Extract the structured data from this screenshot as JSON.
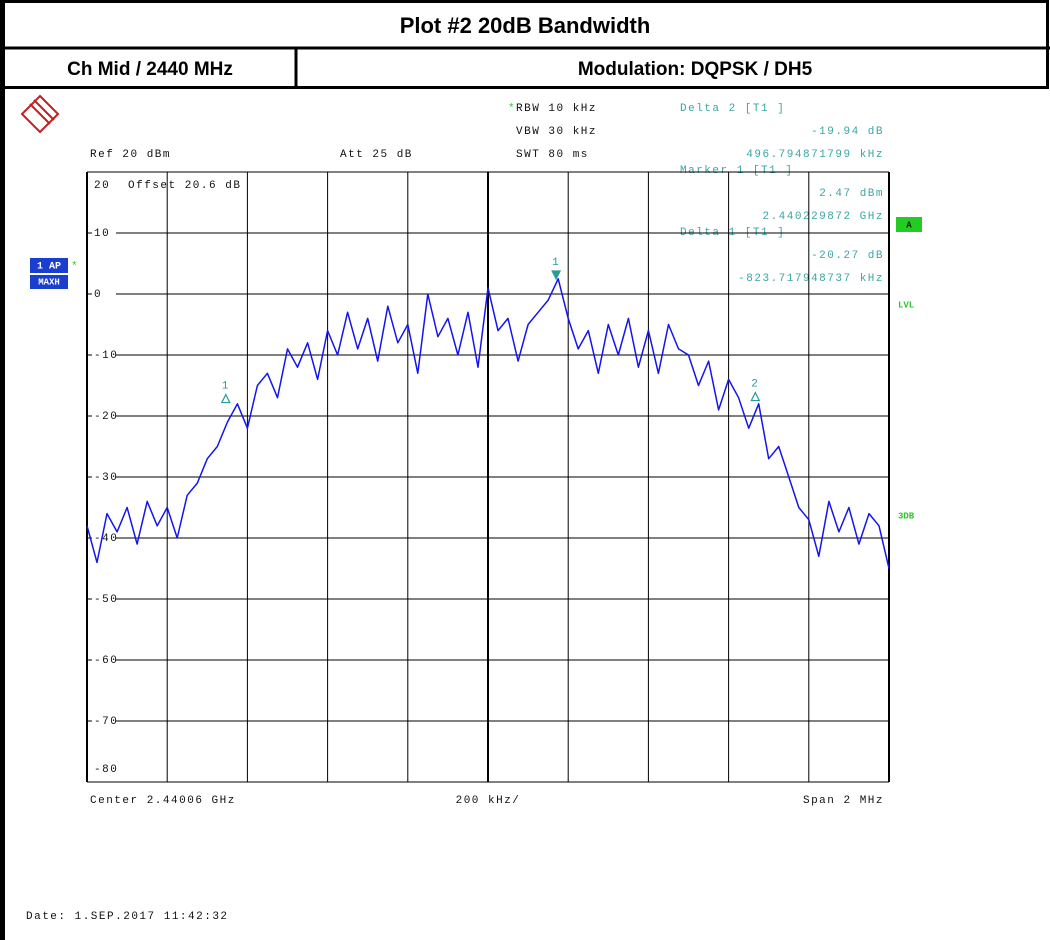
{
  "header": {
    "title": "Plot #2 20dB Bandwidth",
    "left": "Ch Mid / 2440 MHz",
    "right": "Modulation: DQPSK / DH5"
  },
  "settings": {
    "rbw_star": "*",
    "rbw": "RBW 10 kHz",
    "vbw": "VBW 30 kHz",
    "swt": "SWT 80 ms",
    "ref": "Ref 20 dBm",
    "att": "Att 25 dB",
    "offset": "Offset 20.6 dB"
  },
  "readout": [
    [
      "Delta 2 [T1 ]",
      "-19.94 dB",
      "496.794871799 kHz"
    ],
    [
      "Marker 1 [T1 ]",
      "2.47 dBm",
      "2.440229872 GHz"
    ],
    [
      "Delta 1 [T1 ]",
      "-20.27 dB",
      "-823.717948737 kHz"
    ]
  ],
  "side_labels": {
    "trace": "1 AP",
    "trace_star": "*",
    "mode": "MAXH",
    "a": "A",
    "lvl": "LVL",
    "db3": "3DB"
  },
  "footer": {
    "center": "Center 2.44006 GHz",
    "div": "200 kHz/",
    "span": "Span 2 MHz",
    "date": "Date: 1.SEP.2017 11:42:32"
  },
  "chart_data": {
    "type": "line",
    "x": [
      2.43906,
      2.439085,
      2.43911,
      2.439135,
      2.43916,
      2.439185,
      2.43921,
      2.439235,
      2.43926,
      2.439285,
      2.43931,
      2.439335,
      2.43936,
      2.439385,
      2.43941,
      2.439435,
      2.43946,
      2.439485,
      2.43951,
      2.439535,
      2.43956,
      2.439585,
      2.43961,
      2.439635,
      2.43966,
      2.439685,
      2.43971,
      2.439735,
      2.43976,
      2.439785,
      2.43981,
      2.439835,
      2.43986,
      2.439885,
      2.43991,
      2.439935,
      2.43996,
      2.439985,
      2.44001,
      2.440035,
      2.44006,
      2.440085,
      2.44011,
      2.440135,
      2.44016,
      2.440185,
      2.44021,
      2.440235,
      2.44026,
      2.440285,
      2.44031,
      2.440335,
      2.44036,
      2.440385,
      2.44041,
      2.440435,
      2.44046,
      2.440485,
      2.44051,
      2.440535,
      2.44056,
      2.440585,
      2.44061,
      2.440635,
      2.44066,
      2.440685,
      2.44071,
      2.440735,
      2.44076,
      2.440785,
      2.44081,
      2.440835,
      2.44086,
      2.440885,
      2.44091,
      2.440935,
      2.44096,
      2.440985,
      2.44101,
      2.441035,
      2.44106
    ],
    "series": [
      {
        "color": "#1414f0",
        "values": [
          -38,
          -44,
          -36,
          -39,
          -35,
          -41,
          -34,
          -38,
          -35,
          -40,
          -33,
          -31,
          -27,
          -25,
          -21,
          -18,
          -22,
          -15,
          -13,
          -17,
          -9,
          -12,
          -8,
          -14,
          -6,
          -10,
          -3,
          -9,
          -4,
          -11,
          -2,
          -8,
          -5,
          -13,
          0,
          -7,
          -4,
          -10,
          -3,
          -12,
          1,
          -6,
          -4,
          -11,
          -5,
          -3,
          -1,
          2.5,
          -4,
          -9,
          -6,
          -13,
          -5,
          -10,
          -4,
          -12,
          -6,
          -13,
          -5,
          -9,
          -10,
          -15,
          -11,
          -19,
          -14,
          -17,
          -22,
          -18,
          -27,
          -25,
          -30,
          -35,
          -37,
          -43,
          -34,
          -39,
          -35,
          -41,
          -36,
          -38,
          -45
        ]
      }
    ],
    "markers": [
      {
        "label": "1",
        "x": 2.440229872,
        "y": 2.47
      },
      {
        "label": "1",
        "x": 2.43940615,
        "y": -17.8
      },
      {
        "label": "2",
        "x": 2.440726667,
        "y": -17.47
      }
    ],
    "marker_color": "#2a9a9a",
    "xlim": [
      2.43906,
      2.44106
    ],
    "xticks": [
      2.43906,
      2.43926,
      2.43946,
      2.43966,
      2.43986,
      2.44006,
      2.44026,
      2.44046,
      2.44066,
      2.44086,
      2.44106
    ],
    "ylim": [
      -80,
      20
    ],
    "yticks": [
      20,
      10,
      0,
      -10,
      -20,
      -30,
      -40,
      -50,
      -60,
      -70,
      -80
    ],
    "grid": true
  }
}
